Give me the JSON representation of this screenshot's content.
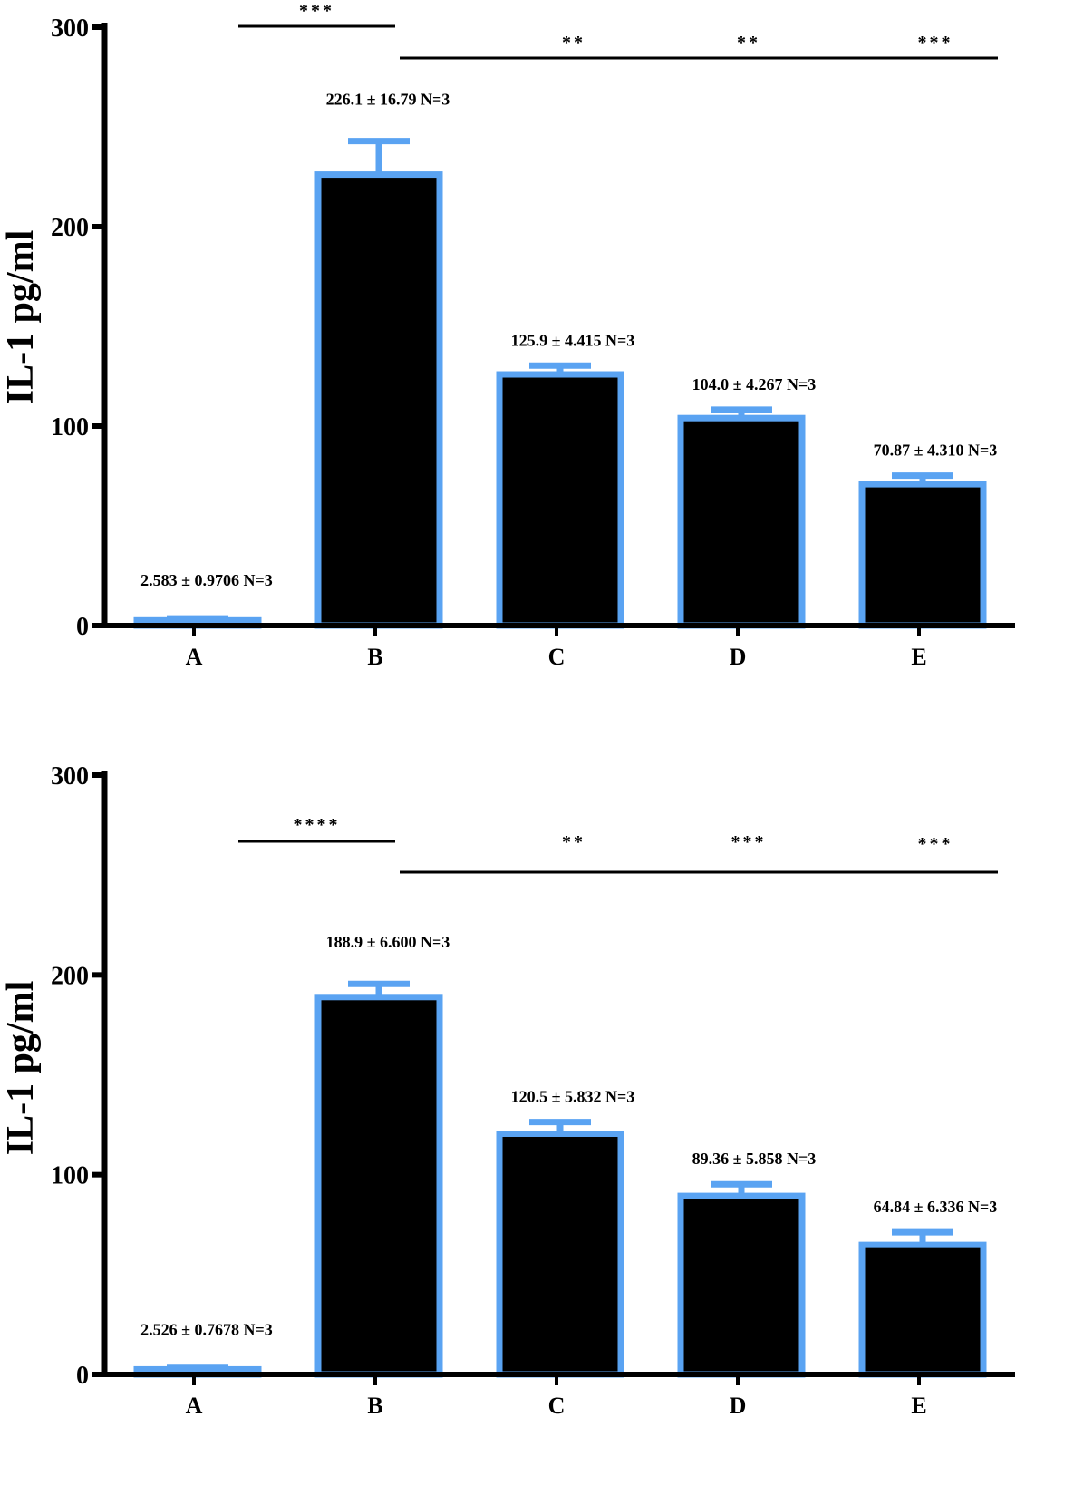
{
  "chart_data": [
    {
      "type": "bar",
      "ylabel": "IL-1 pg/ml",
      "xlabel": "",
      "ylim": [
        0,
        300
      ],
      "yticks": [
        0,
        100,
        200,
        300
      ],
      "categories": [
        "A",
        "B",
        "C",
        "D",
        "E"
      ],
      "values": [
        2.583,
        226.1,
        125.9,
        104.0,
        70.87
      ],
      "errors": [
        0.9706,
        16.79,
        4.415,
        4.267,
        4.31
      ],
      "data_labels": [
        "2.583 ± 0.9706 N=3",
        "226.1 ± 16.79 N=3",
        "125.9 ± 4.415 N=3",
        "104.0 ± 4.267 N=3",
        "70.87 ± 4.310 N=3"
      ],
      "significance": [
        {
          "label": "***",
          "span": "A-B"
        },
        {
          "label": "**",
          "group": "C"
        },
        {
          "label": "**",
          "group": "D"
        },
        {
          "label": "***",
          "group": "E"
        }
      ]
    },
    {
      "type": "bar",
      "ylabel": "IL-1 pg/ml",
      "xlabel": "",
      "ylim": [
        0,
        300
      ],
      "yticks": [
        0,
        100,
        200,
        300
      ],
      "categories": [
        "A",
        "B",
        "C",
        "D",
        "E"
      ],
      "values": [
        2.526,
        188.9,
        120.5,
        89.36,
        64.84
      ],
      "errors": [
        0.7678,
        6.6,
        5.832,
        5.858,
        6.336
      ],
      "data_labels": [
        "2.526 ± 0.7678 N=3",
        "188.9 ± 6.600 N=3",
        "120.5 ± 5.832 N=3",
        "89.36 ± 5.858 N=3",
        "64.84 ± 6.336 N=3"
      ],
      "significance": [
        {
          "label": "****",
          "span": "A-B"
        },
        {
          "label": "**",
          "group": "C"
        },
        {
          "label": "***",
          "group": "D"
        },
        {
          "label": "***",
          "group": "E"
        }
      ]
    }
  ],
  "colors": {
    "bar_fill": "#000000",
    "bar_outline": "#5aa3f2",
    "axis": "#000000"
  }
}
